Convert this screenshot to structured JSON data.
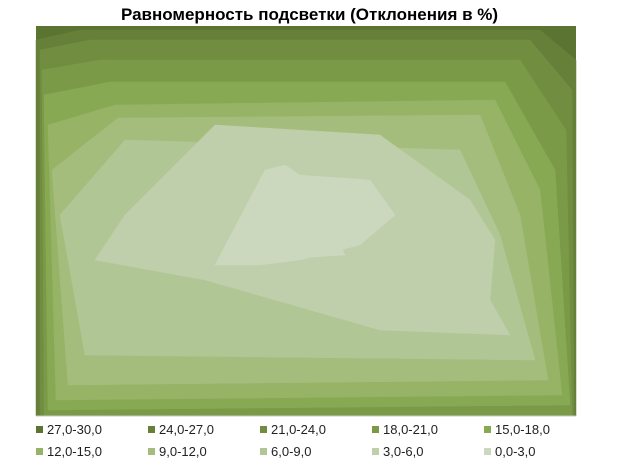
{
  "chart_data": {
    "type": "contour",
    "title": "Равномерность подсветки (Отклонения в %)",
    "legend": {
      "position": "bottom",
      "entries": [
        {
          "label": "27,0-30,0",
          "color": "#5c7432"
        },
        {
          "label": "24,0-27,0",
          "color": "#66803a"
        },
        {
          "label": "21,0-24,0",
          "color": "#708d40"
        },
        {
          "label": "18,0-21,0",
          "color": "#7b9a48"
        },
        {
          "label": "15,0-18,0",
          "color": "#88a954"
        },
        {
          "label": "12,0-15,0",
          "color": "#96b366"
        },
        {
          "label": "9,0-12,0",
          "color": "#a4bd7d"
        },
        {
          "label": "6,0-9,0",
          "color": "#b1c695"
        },
        {
          "label": "3,0-6,0",
          "color": "#bfcfab"
        },
        {
          "label": "0,0-3,0",
          "color": "#cbd8bd"
        }
      ]
    }
  }
}
